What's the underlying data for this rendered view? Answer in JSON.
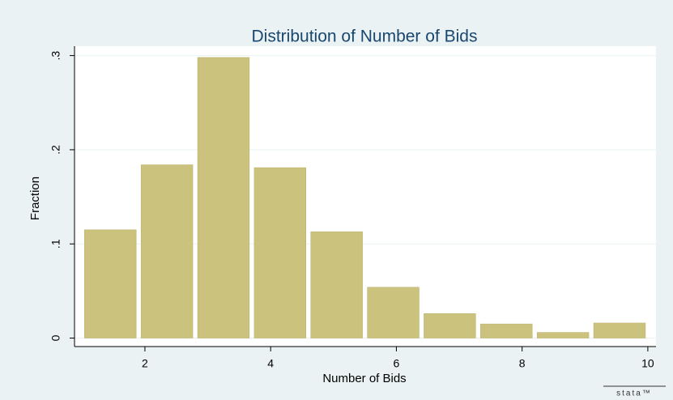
{
  "chart_data": {
    "type": "histogram",
    "title": "Distribution of Number of Bids",
    "xlabel": "Number of Bids",
    "ylabel": "Fraction",
    "watermark": "stata™",
    "bins": [
      1,
      1.9,
      2.8,
      3.7,
      4.6,
      5.5,
      6.4,
      7.3,
      8.2,
      9.1,
      10
    ],
    "values": [
      0.115,
      0.184,
      0.298,
      0.181,
      0.113,
      0.054,
      0.026,
      0.015,
      0.006,
      0.016
    ],
    "color": "#cbc27e",
    "xlim": [
      0.88,
      10.13
    ],
    "ylim": [
      -0.009,
      0.31
    ],
    "xticks": [
      2,
      4,
      6,
      8,
      10
    ],
    "yticks": [
      0,
      {
        "value": 0.1,
        "label": ".1"
      },
      {
        "value": 0.2,
        "label": ".2"
      },
      {
        "value": 0.3,
        "label": ".3"
      }
    ],
    "grid": true
  }
}
